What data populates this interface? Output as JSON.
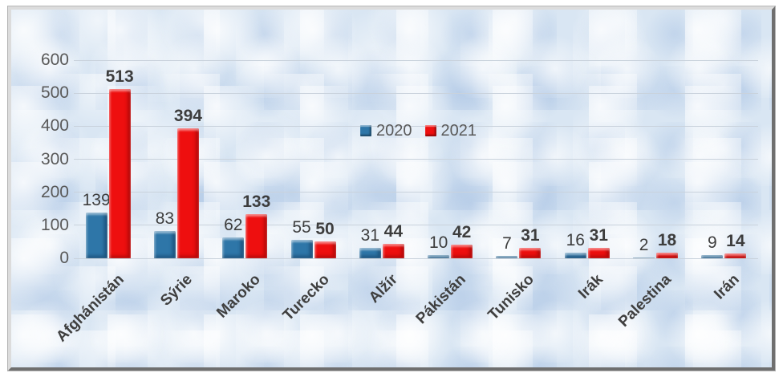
{
  "chart_data": {
    "type": "bar",
    "categories": [
      "Afghánistán",
      "Sýrie",
      "Maroko",
      "Turecko",
      "Alžír",
      "Pákistán",
      "Tunisko",
      "Irák",
      "Palestina",
      "Irán"
    ],
    "series": [
      {
        "name": "2020",
        "color": "#2E76A8",
        "values": [
          139,
          83,
          62,
          55,
          31,
          10,
          7,
          16,
          2,
          9
        ],
        "label_weight": "normal"
      },
      {
        "name": "2021",
        "color": "#EE0F0F",
        "values": [
          513,
          394,
          133,
          50,
          44,
          42,
          31,
          31,
          18,
          14
        ],
        "label_weight": "bold"
      }
    ],
    "title": "",
    "xlabel": "",
    "ylabel": "",
    "ylim": [
      0,
      600
    ],
    "yticks": [
      "0",
      "100",
      "200",
      "300",
      "400",
      "500",
      "600"
    ],
    "grid": true,
    "legend_position": "inside-upper-center",
    "data_labels": true
  },
  "colors": {
    "series_2020": "#2E76A8",
    "series_2021": "#EE0F0F",
    "grid_line": "#C9D2DC",
    "tick_text": "#595959",
    "value_text": "#3D3D3D",
    "category_text": "#3F3F3F",
    "legend_text": "#595959",
    "plot_background": "#D9E6F3",
    "frame_light": "#DCDCDC",
    "frame_dark": "#6F6F6F"
  }
}
